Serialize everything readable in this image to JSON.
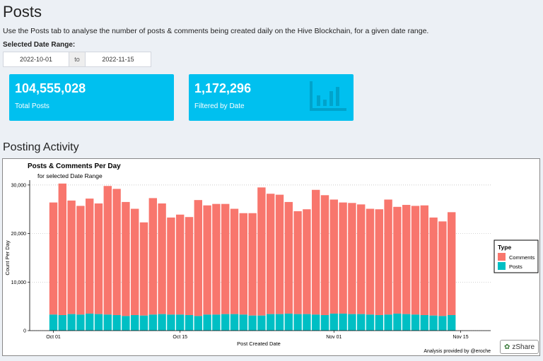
{
  "header": {
    "title": "Posts",
    "description": "Use the Posts tab to analyse the number of posts & comments being created daily on the Hive Blockchain, for a given date range."
  },
  "date_range": {
    "label": "Selected Date Range:",
    "start": "2022-10-01",
    "separator": "to",
    "end": "2022-11-15"
  },
  "value_boxes": [
    {
      "value": "104,555,028",
      "label": "Total Posts"
    },
    {
      "value": "1,172,296",
      "label": "Filtered by Date",
      "icon": "bar-chart-icon"
    }
  ],
  "section": {
    "title": "Posting Activity"
  },
  "colors": {
    "comments": "#F8766D",
    "posts": "#00BFC4",
    "box": "#00c0ef"
  },
  "chart_data": {
    "type": "bar",
    "stacked": true,
    "title": "Posts & Comments Per Day",
    "subtitle": "for selected Date Range",
    "xlabel": "Post Created Date",
    "ylabel": "Count Per Day",
    "ylim": [
      0,
      31000
    ],
    "yticks": [
      0,
      10000,
      20000,
      30000
    ],
    "ytick_labels": [
      "0",
      "10,000",
      "20,000",
      "30,000"
    ],
    "xticks": [
      "Oct 01",
      "Oct 15",
      "Nov 01",
      "Nov 15"
    ],
    "xtick_index": [
      0,
      14,
      31,
      45
    ],
    "legend": {
      "title": "Type",
      "position": "right",
      "entries": [
        "Comments",
        "Posts"
      ]
    },
    "categories": [
      "2022-10-01",
      "2022-10-02",
      "2022-10-03",
      "2022-10-04",
      "2022-10-05",
      "2022-10-06",
      "2022-10-07",
      "2022-10-08",
      "2022-10-09",
      "2022-10-10",
      "2022-10-11",
      "2022-10-12",
      "2022-10-13",
      "2022-10-14",
      "2022-10-15",
      "2022-10-16",
      "2022-10-17",
      "2022-10-18",
      "2022-10-19",
      "2022-10-20",
      "2022-10-21",
      "2022-10-22",
      "2022-10-23",
      "2022-10-24",
      "2022-10-25",
      "2022-10-26",
      "2022-10-27",
      "2022-10-28",
      "2022-10-29",
      "2022-10-30",
      "2022-10-31",
      "2022-11-01",
      "2022-11-02",
      "2022-11-03",
      "2022-11-04",
      "2022-11-05",
      "2022-11-06",
      "2022-11-07",
      "2022-11-08",
      "2022-11-09",
      "2022-11-10",
      "2022-11-11",
      "2022-11-12",
      "2022-11-13",
      "2022-11-14"
    ],
    "series": [
      {
        "name": "Posts",
        "values": [
          3300,
          3200,
          3400,
          3300,
          3500,
          3400,
          3300,
          3200,
          3000,
          3200,
          3100,
          3300,
          3400,
          3300,
          3300,
          3200,
          3000,
          3300,
          3300,
          3400,
          3400,
          3300,
          3100,
          3100,
          3400,
          3400,
          3500,
          3400,
          3400,
          3300,
          3200,
          3500,
          3500,
          3400,
          3400,
          3300,
          3200,
          3300,
          3500,
          3400,
          3300,
          3200,
          3100,
          3000,
          3200
        ]
      },
      {
        "name": "Comments",
        "values": [
          23100,
          27100,
          23400,
          22400,
          23700,
          22800,
          26500,
          26000,
          23500,
          21900,
          19200,
          24000,
          22800,
          20000,
          20600,
          20200,
          23900,
          22500,
          22800,
          22700,
          21700,
          20900,
          21100,
          26400,
          24800,
          24600,
          23000,
          21200,
          21600,
          25700,
          24700,
          23500,
          22900,
          22900,
          22600,
          21800,
          21800,
          23700,
          22000,
          22500,
          22400,
          22600,
          20200,
          19500,
          21200
        ]
      }
    ],
    "caption": "Analysis provided by @eroche"
  },
  "zshare": {
    "label": "zShare"
  }
}
